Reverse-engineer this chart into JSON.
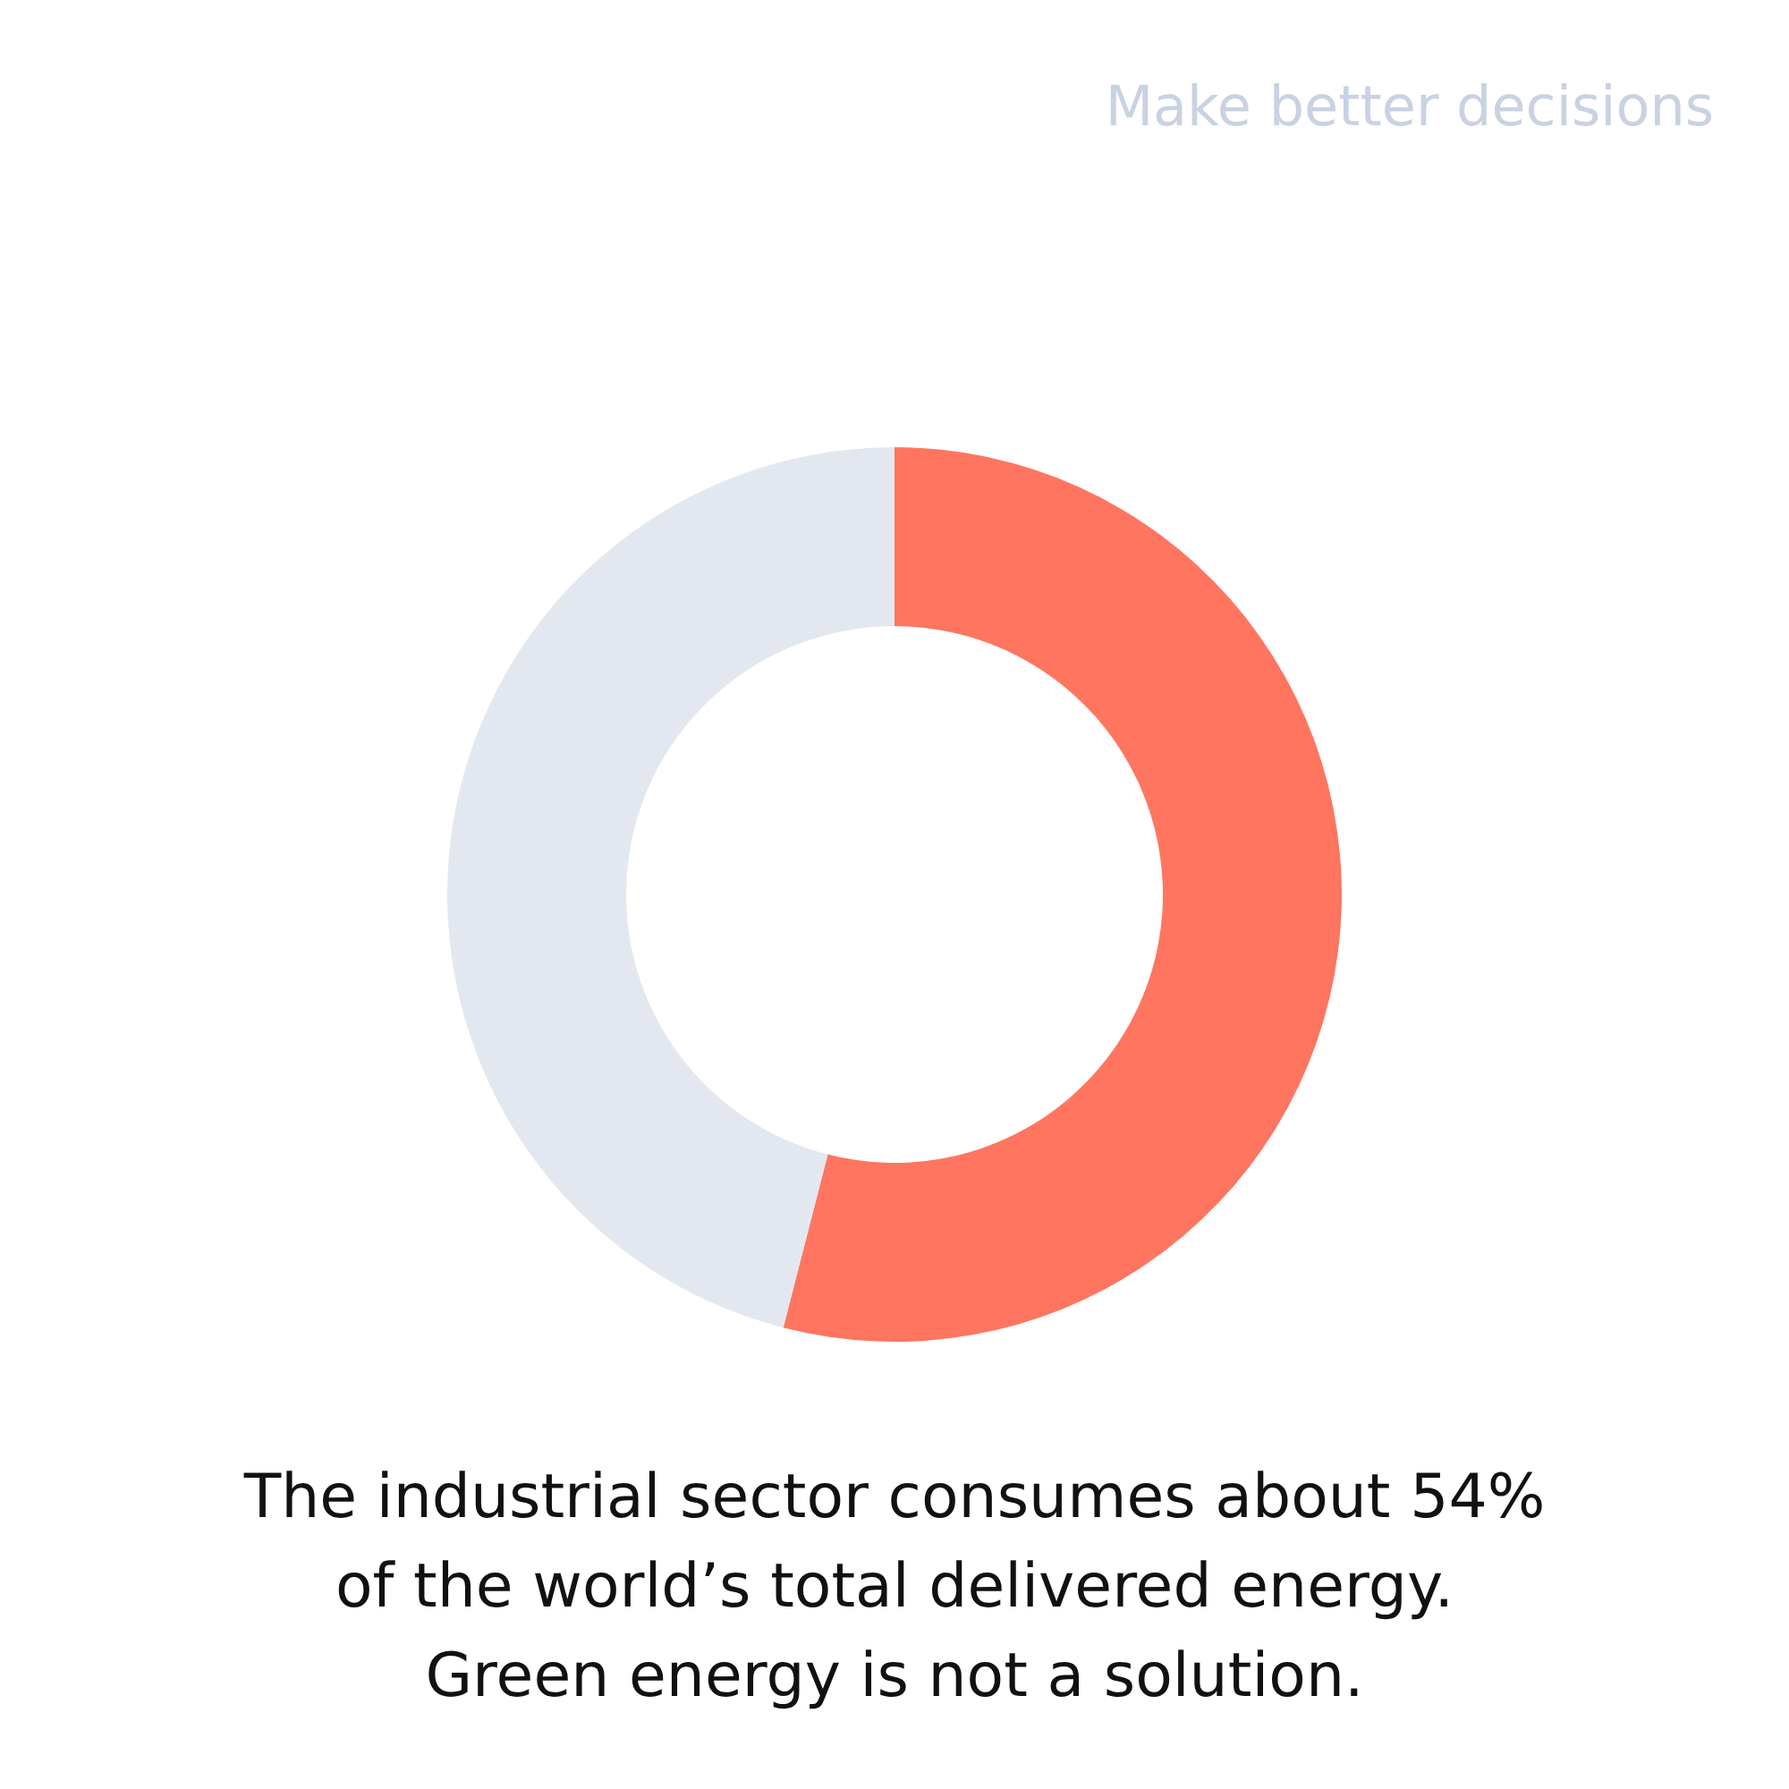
{
  "chart_data": {
    "type": "donut",
    "subtitle": "Make better decisions",
    "categories": [
      null,
      null
    ],
    "values": [
      54,
      46
    ],
    "colors": [
      "#ff7560",
      "#e3e8f0"
    ],
    "annotations": [
      "The industrial sector consumes about 54%",
      "of the world’s total delivered energy.",
      "Green energy is not a solution."
    ]
  }
}
